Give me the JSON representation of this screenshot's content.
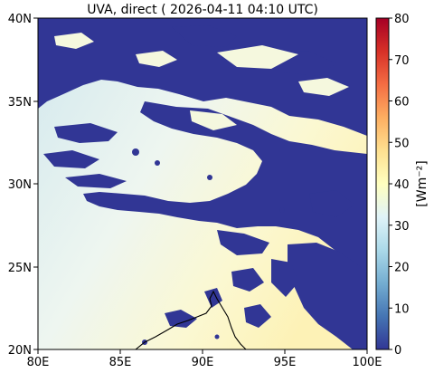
{
  "title": "UVA, direct ( 2026-04-11 04:10 UTC)",
  "map": {
    "lon_ticks": [
      "80E",
      "85E",
      "90E",
      "95E",
      "100E"
    ],
    "lat_ticks": [
      "40N",
      "35N",
      "30N",
      "25N",
      "20N"
    ],
    "lon_range": [
      80,
      100
    ],
    "lat_range": [
      20,
      40
    ],
    "cloud_color": "#313695",
    "clear_sky_color": "#e8f4f2",
    "coastline_color": "#000000"
  },
  "colorbar": {
    "ticks": [
      "80",
      "70",
      "60",
      "50",
      "40",
      "30",
      "20",
      "10",
      "0"
    ],
    "range": [
      0,
      80
    ],
    "label": "[Wm⁻²]",
    "colormap": [
      "#313695",
      "#4575b4",
      "#74add1",
      "#abd9e9",
      "#e0f3f8",
      "#ffffbf",
      "#fee090",
      "#fdae61",
      "#f46d43",
      "#d73027",
      "#a50026"
    ]
  }
}
